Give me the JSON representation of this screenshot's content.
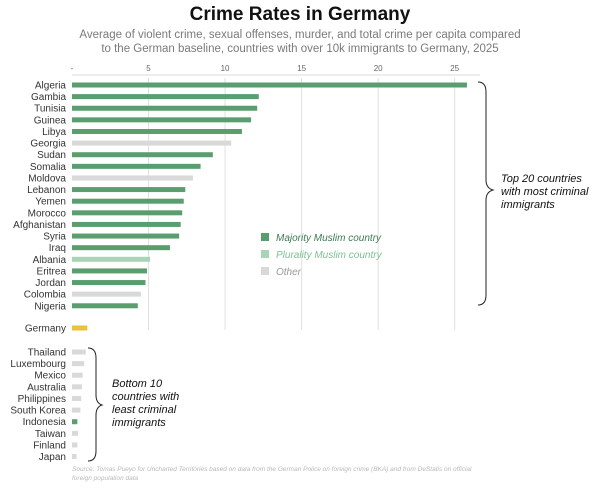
{
  "chart_data": {
    "type": "bar",
    "orientation": "horizontal",
    "title": "Crime Rates in Germany",
    "subtitle_lines": [
      "Average of violent crime, sexual offenses, murder, and total crime per capita compared",
      "to the German baseline, countries with over 10k immigrants to Germany, 2025"
    ],
    "xlim": [
      0,
      26
    ],
    "x_ticks": [
      {
        "value": 0,
        "label": "-"
      },
      {
        "value": 5,
        "label": "5"
      },
      {
        "value": 10,
        "label": "10"
      },
      {
        "value": 15,
        "label": "15"
      },
      {
        "value": 20,
        "label": "20"
      },
      {
        "value": 25,
        "label": "25"
      }
    ],
    "colors": {
      "majority": "#5a9e6f",
      "plurality": "#a9d4b5",
      "other": "#d9d9d9",
      "germany": "#e8c23a"
    },
    "legend": {
      "placement": "center-right",
      "entries": [
        {
          "key": "majority",
          "label": "Majority Muslim country"
        },
        {
          "key": "plurality",
          "label": "Plurality Muslim country"
        },
        {
          "key": "other",
          "label": "Other"
        }
      ]
    },
    "groups": [
      {
        "name": "top",
        "note": [
          "Top 20 countries",
          "with most criminal",
          "immigrants"
        ],
        "bars": [
          {
            "label": "Algeria",
            "value": 25.8,
            "group": "majority"
          },
          {
            "label": "Gambia",
            "value": 12.2,
            "group": "majority"
          },
          {
            "label": "Tunisia",
            "value": 12.1,
            "group": "majority"
          },
          {
            "label": "Guinea",
            "value": 11.7,
            "group": "majority"
          },
          {
            "label": "Libya",
            "value": 11.1,
            "group": "majority"
          },
          {
            "label": "Georgia",
            "value": 10.4,
            "group": "other"
          },
          {
            "label": "Sudan",
            "value": 9.2,
            "group": "majority"
          },
          {
            "label": "Somalia",
            "value": 8.4,
            "group": "majority"
          },
          {
            "label": "Moldova",
            "value": 7.9,
            "group": "other"
          },
          {
            "label": "Lebanon",
            "value": 7.4,
            "group": "majority"
          },
          {
            "label": "Yemen",
            "value": 7.3,
            "group": "majority"
          },
          {
            "label": "Morocco",
            "value": 7.2,
            "group": "majority"
          },
          {
            "label": "Afghanistan",
            "value": 7.1,
            "group": "majority"
          },
          {
            "label": "Syria",
            "value": 7.0,
            "group": "majority"
          },
          {
            "label": "Iraq",
            "value": 6.4,
            "group": "majority"
          },
          {
            "label": "Albania",
            "value": 5.1,
            "group": "plurality"
          },
          {
            "label": "Eritrea",
            "value": 4.9,
            "group": "majority"
          },
          {
            "label": "Jordan",
            "value": 4.8,
            "group": "majority"
          },
          {
            "label": "Colombia",
            "value": 4.5,
            "group": "other"
          },
          {
            "label": "Nigeria",
            "value": 4.3,
            "group": "majority"
          }
        ]
      },
      {
        "name": "baseline",
        "bars": [
          {
            "label": "Germany",
            "value": 1.0,
            "group": "germany"
          }
        ]
      },
      {
        "name": "bottom",
        "note": [
          "Bottom 10",
          "countries with",
          "least criminal",
          "immigrants"
        ],
        "bars": [
          {
            "label": "Thailand",
            "value": 0.9,
            "group": "other"
          },
          {
            "label": "Luxembourg",
            "value": 0.8,
            "group": "other"
          },
          {
            "label": "Mexico",
            "value": 0.7,
            "group": "other"
          },
          {
            "label": "Australia",
            "value": 0.65,
            "group": "other"
          },
          {
            "label": "Philippines",
            "value": 0.6,
            "group": "other"
          },
          {
            "label": "South Korea",
            "value": 0.55,
            "group": "other"
          },
          {
            "label": "Indonesia",
            "value": 0.35,
            "group": "majority"
          },
          {
            "label": "Taiwan",
            "value": 0.4,
            "group": "other"
          },
          {
            "label": "Finland",
            "value": 0.35,
            "group": "other"
          },
          {
            "label": "Japan",
            "value": 0.3,
            "group": "other"
          }
        ]
      }
    ],
    "source_lines": [
      "Source: Tomas Pueyo for Uncharted Territories based on data from the German Police on foreign crime (BKA) and from DeStatis on official",
      "foreign population data"
    ]
  }
}
